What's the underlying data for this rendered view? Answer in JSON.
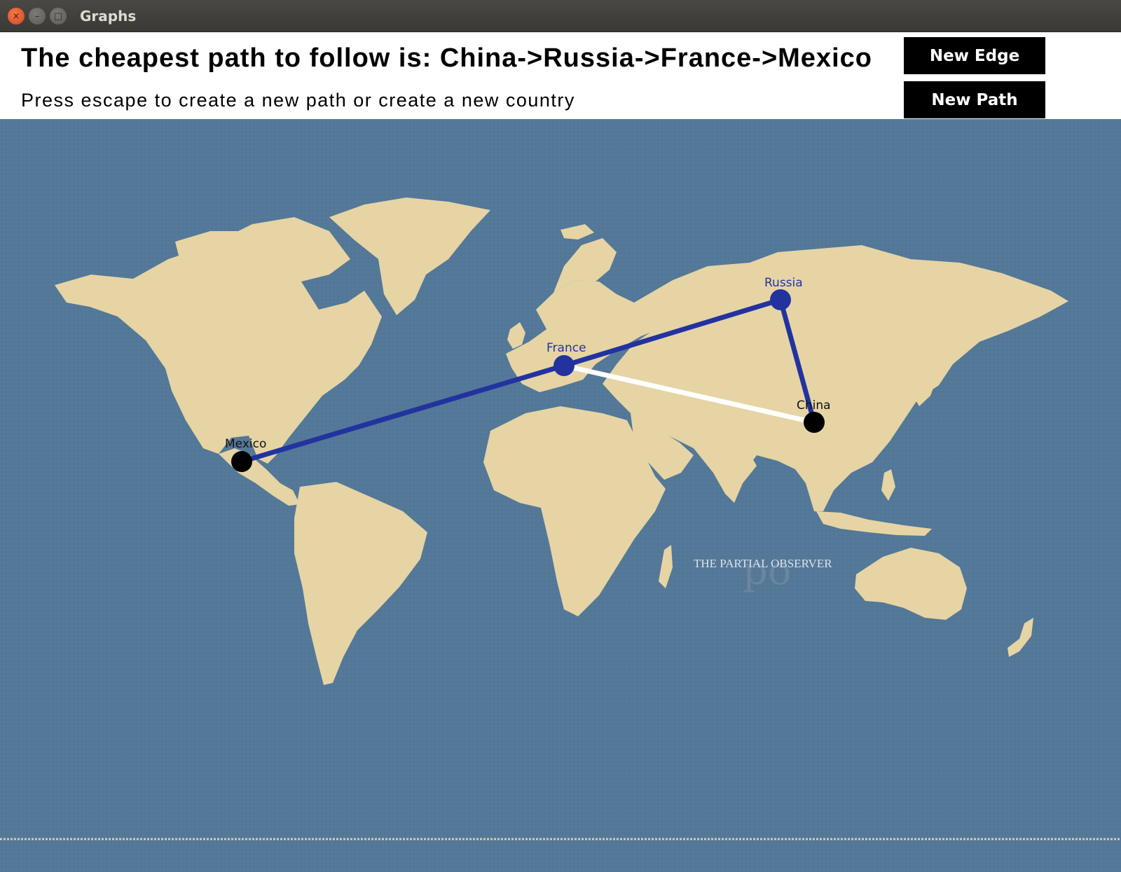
{
  "window": {
    "title": "Graphs",
    "close_glyph": "×",
    "minimize_glyph": "–",
    "maximize_glyph": "□"
  },
  "header": {
    "path_text": "The cheapest path to follow is: China->Russia->France->Mexico",
    "hint_text": "Press escape to create a new path or create a new country"
  },
  "buttons": {
    "new_edge": "New Edge",
    "new_path": "New Path"
  },
  "map": {
    "watermark": "THE PARTIAL OBSERVER",
    "watermark_logo": "po",
    "ocean_color": "#537898",
    "land_color": "#e6d4a5"
  },
  "graph": {
    "nodes": [
      {
        "id": "mexico",
        "label": "Mexico",
        "state": "default",
        "color": "#000000"
      },
      {
        "id": "france",
        "label": "France",
        "state": "on-path",
        "color": "#2233a0"
      },
      {
        "id": "russia",
        "label": "Russia",
        "state": "on-path",
        "color": "#2233a0"
      },
      {
        "id": "china",
        "label": "China",
        "state": "default",
        "color": "#000000"
      }
    ],
    "edges": [
      {
        "from": "mexico",
        "to": "france",
        "state": "on-path",
        "color": "#2233a0"
      },
      {
        "from": "france",
        "to": "russia",
        "state": "on-path",
        "color": "#2233a0"
      },
      {
        "from": "russia",
        "to": "china",
        "state": "on-path",
        "color": "#2233a0"
      },
      {
        "from": "france",
        "to": "china",
        "state": "default",
        "color": "#ffffff"
      }
    ]
  }
}
